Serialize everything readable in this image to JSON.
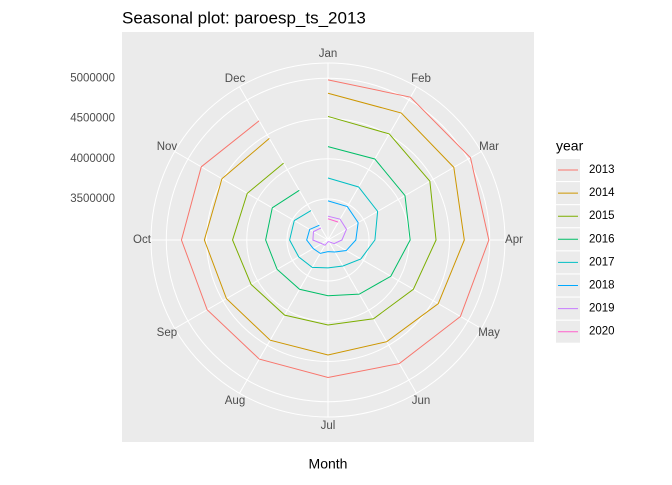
{
  "chart_data": {
    "type": "line",
    "polar": true,
    "title": "Seasonal plot: paroesp_ts_2013",
    "x_label": "Month",
    "legend_title": "year",
    "legend_position": "right",
    "categories": [
      "Jan",
      "Feb",
      "Mar",
      "Apr",
      "May",
      "Jun",
      "Jul",
      "Aug",
      "Sep",
      "Oct",
      "Nov",
      "Dec"
    ],
    "ylim": [
      2990000,
      5190000
    ],
    "yticks": [
      3500000,
      4000000,
      4500000,
      5000000
    ],
    "grid": true,
    "series": [
      {
        "name": "2013",
        "color": "#F8766D",
        "values": [
          4980778,
          5040222,
          5035243,
          4989193,
          4890928,
          4763680,
          4698814,
          4698783,
          4724355,
          4811383,
          4808908,
          4701338
        ]
      },
      {
        "name": "2014",
        "color": "#CD9600",
        "values": [
          4814435,
          4812486,
          4795866,
          4684301,
          4572385,
          4449701,
          4419860,
          4427930,
          4447650,
          4526804,
          4512153,
          4447711
        ]
      },
      {
        "name": "2015",
        "color": "#7CAE00",
        "values": [
          4525691,
          4512816,
          4451939,
          4333016,
          4215031,
          4120304,
          4046276,
          4067955,
          4094042,
          4176369,
          4149298,
          4093508
        ]
      },
      {
        "name": "2016",
        "color": "#00BE67",
        "values": [
          4150710,
          4152986,
          4094770,
          4011171,
          3891403,
          3767054,
          3683061,
          3697496,
          3720297,
          3764982,
          3789823,
          3702974
        ]
      },
      {
        "name": "2017",
        "color": "#00BFC4",
        "values": [
          3760231,
          3750876,
          3702317,
          3573036,
          3461128,
          3362811,
          3335924,
          3382324,
          3410182,
          3467026,
          3474281,
          3412781
        ]
      },
      {
        "name": "2018",
        "color": "#00A9FF",
        "values": [
          3476528,
          3470248,
          3422551,
          3335868,
          3252130,
          3162162,
          3135021,
          3182068,
          3202509,
          3254703,
          3252867,
          3202297
        ]
      },
      {
        "name": "2019",
        "color": "#C77CFF",
        "values": [
          3285761,
          3289040,
          3255084,
          3163566,
          3079491,
          3015686,
          3011433,
          3065804,
          3079711,
          3177659,
          3198184,
          3163605
        ]
      },
      {
        "name": "2020",
        "color": "#FF61CC",
        "values": [
          3253853,
          3246047,
          null,
          null,
          null,
          null,
          null,
          null,
          null,
          null,
          null,
          null
        ]
      }
    ]
  }
}
